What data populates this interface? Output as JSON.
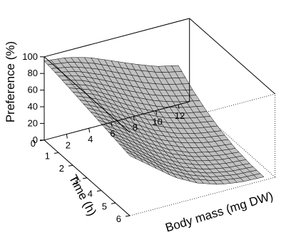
{
  "chart_data": {
    "type": "surface",
    "xlabel": "Body mass (mg DW)",
    "ylabel": "Time (h)",
    "zlabel": "Preference (%)",
    "x_ticks": [
      "2",
      "4",
      "6",
      "8",
      "10",
      "12"
    ],
    "y_ticks": [
      "0",
      "1",
      "2",
      "3",
      "4",
      "5",
      "6"
    ],
    "z_ticks": [
      "0",
      "20",
      "40",
      "60",
      "80",
      "100"
    ],
    "xlim": [
      0,
      13
    ],
    "ylim": [
      0,
      6
    ],
    "zlim": [
      0,
      100
    ],
    "surface_color": "#c0c0c0",
    "mesh_color": "#000000",
    "body_mass": [
      0,
      2,
      4,
      6,
      8,
      10,
      12
    ],
    "time": [
      0,
      1,
      2,
      3,
      4,
      5,
      6
    ],
    "preference": [
      [
        95,
        92,
        85,
        74,
        63,
        53,
        47
      ],
      [
        92,
        85,
        73,
        60,
        48,
        39,
        33
      ],
      [
        88,
        78,
        62,
        47,
        35,
        27,
        22
      ],
      [
        84,
        70,
        52,
        36,
        25,
        18,
        14
      ],
      [
        80,
        63,
        44,
        28,
        17,
        11,
        8
      ],
      [
        76,
        57,
        37,
        22,
        12,
        7,
        5
      ],
      [
        72,
        52,
        32,
        18,
        9,
        5,
        4
      ]
    ]
  }
}
